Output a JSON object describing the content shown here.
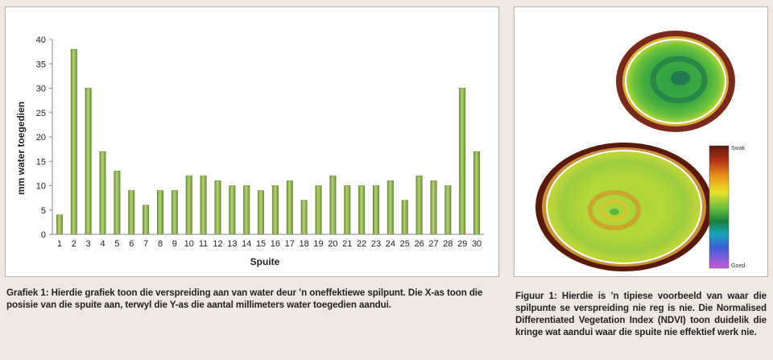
{
  "chart_data": {
    "type": "bar",
    "categories": [
      "1",
      "2",
      "3",
      "4",
      "5",
      "6",
      "7",
      "8",
      "9",
      "10",
      "11",
      "12",
      "13",
      "14",
      "15",
      "16",
      "17",
      "18",
      "19",
      "20",
      "21",
      "22",
      "23",
      "24",
      "25",
      "26",
      "27",
      "28",
      "29",
      "30"
    ],
    "values": [
      4,
      38,
      30,
      17,
      13,
      9,
      6,
      9,
      9,
      12,
      12,
      11,
      10,
      10,
      9,
      10,
      11,
      7,
      10,
      12,
      10,
      10,
      10,
      11,
      7,
      12,
      11,
      10,
      30,
      17
    ],
    "xlabel": "Spuite",
    "ylabel": "mm water toegedien",
    "ylim": [
      0,
      40
    ],
    "yticks": [
      "0",
      "5",
      "10",
      "15",
      "20",
      "25",
      "30",
      "35",
      "40"
    ],
    "grid": false,
    "bar_color": "#8fb04a"
  },
  "captions": {
    "chart": "Grafiek 1: Hierdie grafiek toon die verspreiding aan van water deur ’n oneffektiewe spilpunt. Die X-as toon die posisie van die spuite aan, terwyl die Y-as die aantal millimeters water toegedien aandui.",
    "ndvi": "Figuur 1: Hierdie is ’n tipiese voorbeeld van waar die spilpunte se verspreiding nie reg is nie. Die Normalised Differentiated Vegetation Index (NDVI) toon duidelik die kringe wat aandui waar die spuite nie effektief werk nie."
  },
  "ndvi_legend": {
    "top_label": "Swak",
    "bottom_label": "Goed"
  }
}
